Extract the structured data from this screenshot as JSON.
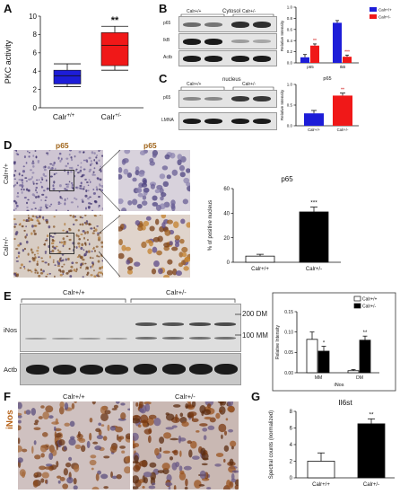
{
  "panels": {
    "A": {
      "letter": "A",
      "chart_data": {
        "type": "box",
        "ylabel": "PKC activity",
        "ylim": [
          0,
          10
        ],
        "yticks": [
          "0",
          "2",
          "4",
          "6",
          "8",
          "10"
        ],
        "categories": [
          "Calr+/+",
          "Calr+/-"
        ],
        "cat_base": [
          "Calr",
          "Calr"
        ],
        "cat_sup": [
          "+/+",
          "+/-"
        ],
        "boxes": [
          {
            "min": 2.3,
            "q1": 2.6,
            "median": 3.5,
            "q3": 4.1,
            "max": 4.8,
            "color": "#1d1dd8"
          },
          {
            "min": 4.1,
            "q1": 4.6,
            "median": 6.8,
            "q3": 8.2,
            "max": 8.9,
            "color": "#f01818"
          }
        ],
        "annotation": "**"
      }
    },
    "B": {
      "letter": "B",
      "blot_title": "Cytosol",
      "group1": "Calr+/+",
      "group2": "Calr+/-",
      "rows": [
        "p65",
        "IkB",
        "Actb"
      ],
      "chart_data": {
        "type": "bar",
        "ylabel": "Relative Intensity",
        "ylim": [
          0,
          1.0
        ],
        "yticks": [
          "0.0",
          "0.2",
          "0.4",
          "0.6",
          "0.8",
          "1.0"
        ],
        "categories": [
          "p65",
          "IkB"
        ],
        "legend_position": "top-right",
        "series": [
          {
            "name": "Calr+/+",
            "values": [
              0.1,
              0.72
            ],
            "errors": [
              0.05,
              0.04
            ],
            "color": "#1d1dd8"
          },
          {
            "name": "Calr+/-",
            "values": [
              0.31,
              0.11
            ],
            "errors": [
              0.03,
              0.03
            ],
            "color": "#f01818"
          }
        ],
        "annotations": [
          "**",
          "***"
        ]
      }
    },
    "C": {
      "letter": "C",
      "blot_title": "nucleus",
      "group1": "Calr+/+",
      "group2": "Calr+/-",
      "rows": [
        "p65",
        "LMNA"
      ],
      "chart_data": {
        "type": "bar",
        "title": "p65",
        "ylabel": "Relative Intensity",
        "ylim": [
          0,
          1.0
        ],
        "yticks": [
          "0.0",
          "0.5",
          "1.0"
        ],
        "categories": [
          "Calr+/+",
          "Calr+/-"
        ],
        "values": [
          0.3,
          0.73
        ],
        "errors": [
          0.07,
          0.06
        ],
        "colors": [
          "#1d1dd8",
          "#f01818"
        ],
        "annotation": "**"
      }
    },
    "D": {
      "letter": "D",
      "stain": "p65",
      "row1": "Calr+/+",
      "row2": "Calr+/-",
      "chart_data": {
        "type": "bar",
        "title": "p65",
        "ylabel": "% of positive nucleus",
        "ylim": [
          0,
          60
        ],
        "yticks": [
          "0",
          "20",
          "40",
          "60"
        ],
        "categories": [
          "Calr+/+",
          "Calr+/-"
        ],
        "values": [
          5,
          41
        ],
        "errors": [
          1.5,
          4
        ],
        "fills": [
          "#ffffff",
          "#000000"
        ],
        "annotation": "***"
      }
    },
    "E": {
      "letter": "E",
      "group1": "Calr+/+",
      "group2": "Calr+/-",
      "rows": [
        "iNos",
        "Actb"
      ],
      "marker_high": "200 DM",
      "marker_low": "100 MM",
      "chart_data": {
        "type": "bar",
        "xlabel": "iNos",
        "ylabel": "Relative Intensity",
        "ylim": [
          0,
          0.15
        ],
        "yticks": [
          "0.00",
          "0.05",
          "0.10",
          "0.15"
        ],
        "categories": [
          "MM",
          "DM"
        ],
        "legend_position": "top-right",
        "series": [
          {
            "name": "Calr+/+",
            "values": [
              0.082,
              0.005
            ],
            "errors": [
              0.018,
              0.003
            ],
            "fill": "#ffffff"
          },
          {
            "name": "Calr+/-",
            "values": [
              0.053,
              0.08
            ],
            "errors": [
              0.012,
              0.01
            ],
            "fill": "#000000"
          }
        ],
        "annotations": [
          "*",
          "**"
        ]
      }
    },
    "F": {
      "letter": "F",
      "stain": "iNos",
      "group1": "Calr+/+",
      "group2": "Calr+/-"
    },
    "G": {
      "letter": "G",
      "chart_data": {
        "type": "bar",
        "title": "Il6st",
        "ylabel": "Spectral counts (normalized)",
        "ylim": [
          0,
          8
        ],
        "yticks": [
          "0",
          "2",
          "4",
          "6",
          "8"
        ],
        "categories": [
          "Calr+/+",
          "Calr+/-"
        ],
        "values": [
          2,
          6.5
        ],
        "errors": [
          1,
          0.6
        ],
        "fills": [
          "#ffffff",
          "#000000"
        ],
        "annotation": "**"
      }
    }
  }
}
